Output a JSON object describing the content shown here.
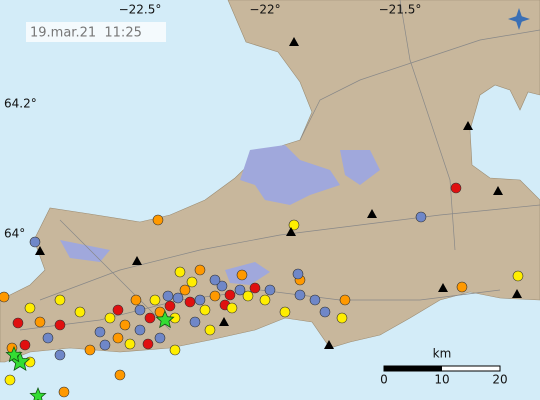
{
  "timestamp": "19.mar.21  11:25",
  "longitude_labels": [
    "−22.5°",
    "−22°",
    "−21.5°"
  ],
  "latitude_labels": [
    "64.2°",
    "64°"
  ],
  "scale_bar": {
    "unit": "km",
    "ticks": [
      0,
      10,
      20
    ]
  }
}
